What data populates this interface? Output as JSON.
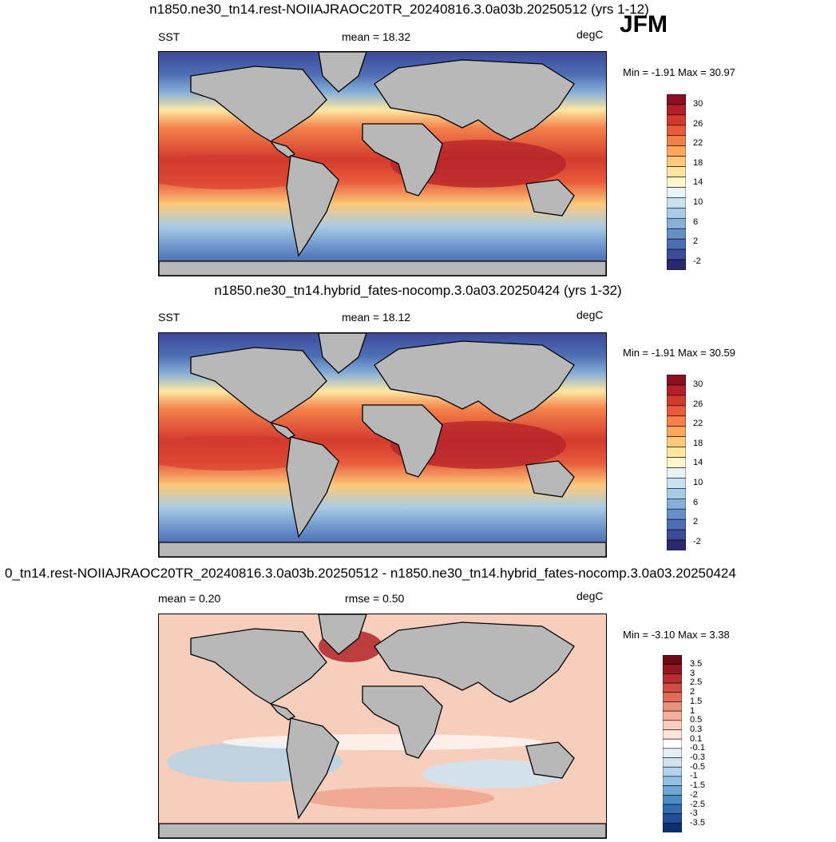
{
  "season": "JFM",
  "colors": {
    "land": "#b8b8b8",
    "sst_scale": [
      "#2b2a6e",
      "#3c4a9a",
      "#4e6eb4",
      "#6690c8",
      "#87b0d8",
      "#a9cbe4",
      "#cae1ef",
      "#e8f3f6",
      "#fff7cc",
      "#fee6a0",
      "#fdc97a",
      "#fba75d",
      "#f4814a",
      "#e85b3b",
      "#d33a2e",
      "#b3202a",
      "#8a0f22"
    ],
    "diff_scale": [
      "#08306b",
      "#1f4f96",
      "#2f6db0",
      "#4c8cc3",
      "#6fa8d3",
      "#93c1e0",
      "#b2d3ea",
      "#cfe3f1",
      "#e5eff7",
      "#ffffff",
      "#fbe5dc",
      "#f7cdbb",
      "#f2b19b",
      "#e9917b",
      "#de6d5c",
      "#cf4c43",
      "#b52e30",
      "#94171f",
      "#6d0a18"
    ]
  },
  "panels": [
    {
      "title": "n1850.ne30_tn14.rest-NOIIAJRAOC20TR_20240816.3.0a03b.20250512 (yrs 1-12)",
      "left_label": "SST",
      "center_label": "mean =  18.32",
      "unit": "degC",
      "minmax": "Min =  -1.91 Max =  30.97",
      "colorbar_labels": [
        "30",
        "26",
        "22",
        "18",
        "14",
        "10",
        "6",
        "2",
        "-2"
      ]
    },
    {
      "title": "n1850.ne30_tn14.hybrid_fates-nocomp.3.0a03.20250424 (yrs 1-32)",
      "left_label": "SST",
      "center_label": "mean =  18.12",
      "unit": "degC",
      "minmax": "Min =  -1.91 Max =  30.59",
      "colorbar_labels": [
        "30",
        "26",
        "22",
        "18",
        "14",
        "10",
        "6",
        "2",
        "-2"
      ]
    },
    {
      "title": "0_tn14.rest-NOIIAJRAOC20TR_20240816.3.0a03b.20250512 - n1850.ne30_tn14.hybrid_fates-nocomp.3.0a03.20250424",
      "left_label": "mean =   0.20",
      "center_label": "rmse =   0.50",
      "unit": "degC",
      "minmax": "Min =  -3.10 Max =   3.38",
      "colorbar_labels": [
        "3.5",
        "3",
        "2.5",
        "2",
        "1.5",
        "1",
        "0.5",
        "0.3",
        "0.1",
        "-0.1",
        "-0.3",
        "-0.5",
        "-1",
        "-1.5",
        "-2",
        "-2.5",
        "-3",
        "-3.5"
      ]
    }
  ]
}
